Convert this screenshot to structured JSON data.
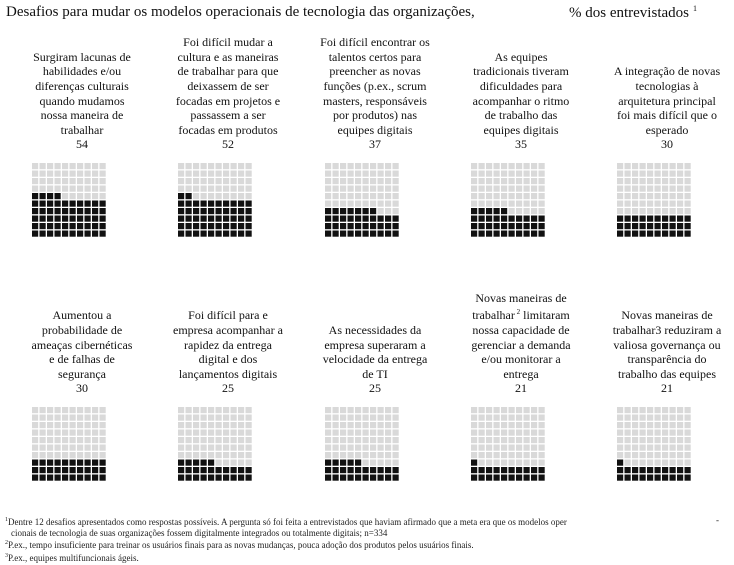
{
  "title": "Desafios para mudar os modelos operacionais de tecnologia das organizações,",
  "unit": "% dos entrevistados",
  "title_note_mark": "1",
  "colors": {
    "filled": "#111111",
    "empty": "#d9d9d9"
  },
  "chart_data": {
    "type": "waffle",
    "grid": {
      "rows": 10,
      "cols": 10,
      "max": 100
    },
    "categories": [
      "Surgiram lacunas de habilidades e/ou diferenças culturais quando mudamos nossa maneira de trabalhar",
      "Foi difícil mudar a cultura e as maneiras de trabalhar para que deixassem de ser focadas em projetos e passassem a ser focadas em produtos",
      "Foi difícil encontrar os talentos certos para preencher as novas funções (p.ex., scrum masters, responsáveis por produtos) nas equipes digitais",
      "As equipes tradicionais tiveram dificuldades para acompanhar o ritmo de trabalho das equipes digitais",
      "A integração de novas tecnologias à arquitetura principal foi mais difícil que o esperado",
      "Aumentou a probabilidade de ameaças cibernéticas e de falhas de segurança",
      "Foi difícil para e empresa acompanhar a rapidez da entrega digital e dos lançamentos digitais",
      "As necessidades da empresa superaram a velocidade da entrega de TI",
      "Novas maneiras de trabalhar limitaram nossa capacidade de gerenciar a demanda e/ou monitorar a entrega",
      "Novas maneiras de trabalhar3 reduziram a valiosa governança ou transparência do trabalho das equipes"
    ],
    "values": [
      54,
      52,
      37,
      35,
      30,
      30,
      25,
      25,
      21,
      21
    ],
    "label_lines": [
      [
        "Surgiram lacunas de",
        "habilidades e/ou",
        "diferenças culturais",
        "quando mudamos",
        "nossa maneira de",
        "trabalhar"
      ],
      [
        "Foi difícil mudar a",
        "cultura e as maneiras",
        "de trabalhar para que",
        "deixassem de ser",
        "focadas em projetos e",
        "passassem a ser",
        "focadas em produtos"
      ],
      [
        "Foi difícil encontrar os",
        "talentos certos para",
        "preencher as novas",
        "funções (p.ex., scrum",
        "masters, responsáveis",
        "por produtos) nas",
        "equipes digitais"
      ],
      [
        "As equipes",
        "tradicionais tiveram",
        "dificuldades para",
        "acompanhar o ritmo",
        "de trabalho das",
        "equipes digitais"
      ],
      [
        "A integração de novas",
        "tecnologias à",
        "arquitetura principal",
        "foi mais difícil que o",
        "esperado"
      ],
      [
        "Aumentou a",
        "probabilidade de",
        "ameaças cibernéticas",
        "e de falhas de",
        "segurança"
      ],
      [
        "Foi difícil para e",
        "empresa acompanhar a",
        "rapidez da entrega",
        "digital e dos",
        "lançamentos digitais"
      ],
      [
        "As necessidades da",
        "empresa superaram a",
        "velocidade da entrega",
        "de TI"
      ],
      [
        "Novas maneiras de",
        "trabalhar",
        "nossa capacidade de",
        "gerenciar a demanda",
        "e/ou monitorar a",
        "entrega"
      ],
      [
        "Novas maneiras de",
        "trabalhar3 reduziram a",
        "valiosa governança ou",
        "transparência do",
        "trabalho das equipes"
      ]
    ],
    "inline_notes": {
      "panel_9_line_2_sup": "2",
      "panel_9_line_2_after": "limitaram"
    }
  },
  "footnotes": {
    "n1_mark": "1",
    "n1_line1": "Dentre 12 desafios apresentados como respostas possíveis. A pergunta só foi feita a entrevistados que haviam afirmado que a meta era que os modelos oper",
    "n1_dash": "-",
    "n1_line2": "cionais de tecnologia de suas organizações fossem digitalmente integrados ou totalmente digitais; n=334",
    "n2_mark": "2",
    "n2": "P.ex., tempo insuficiente para treinar os usuários finais para as novas mudanças, pouca adoção dos produtos pelos usuários finais.",
    "n3_mark": "3",
    "n3": "P.ex., equipes multifuncionais ágeis."
  }
}
